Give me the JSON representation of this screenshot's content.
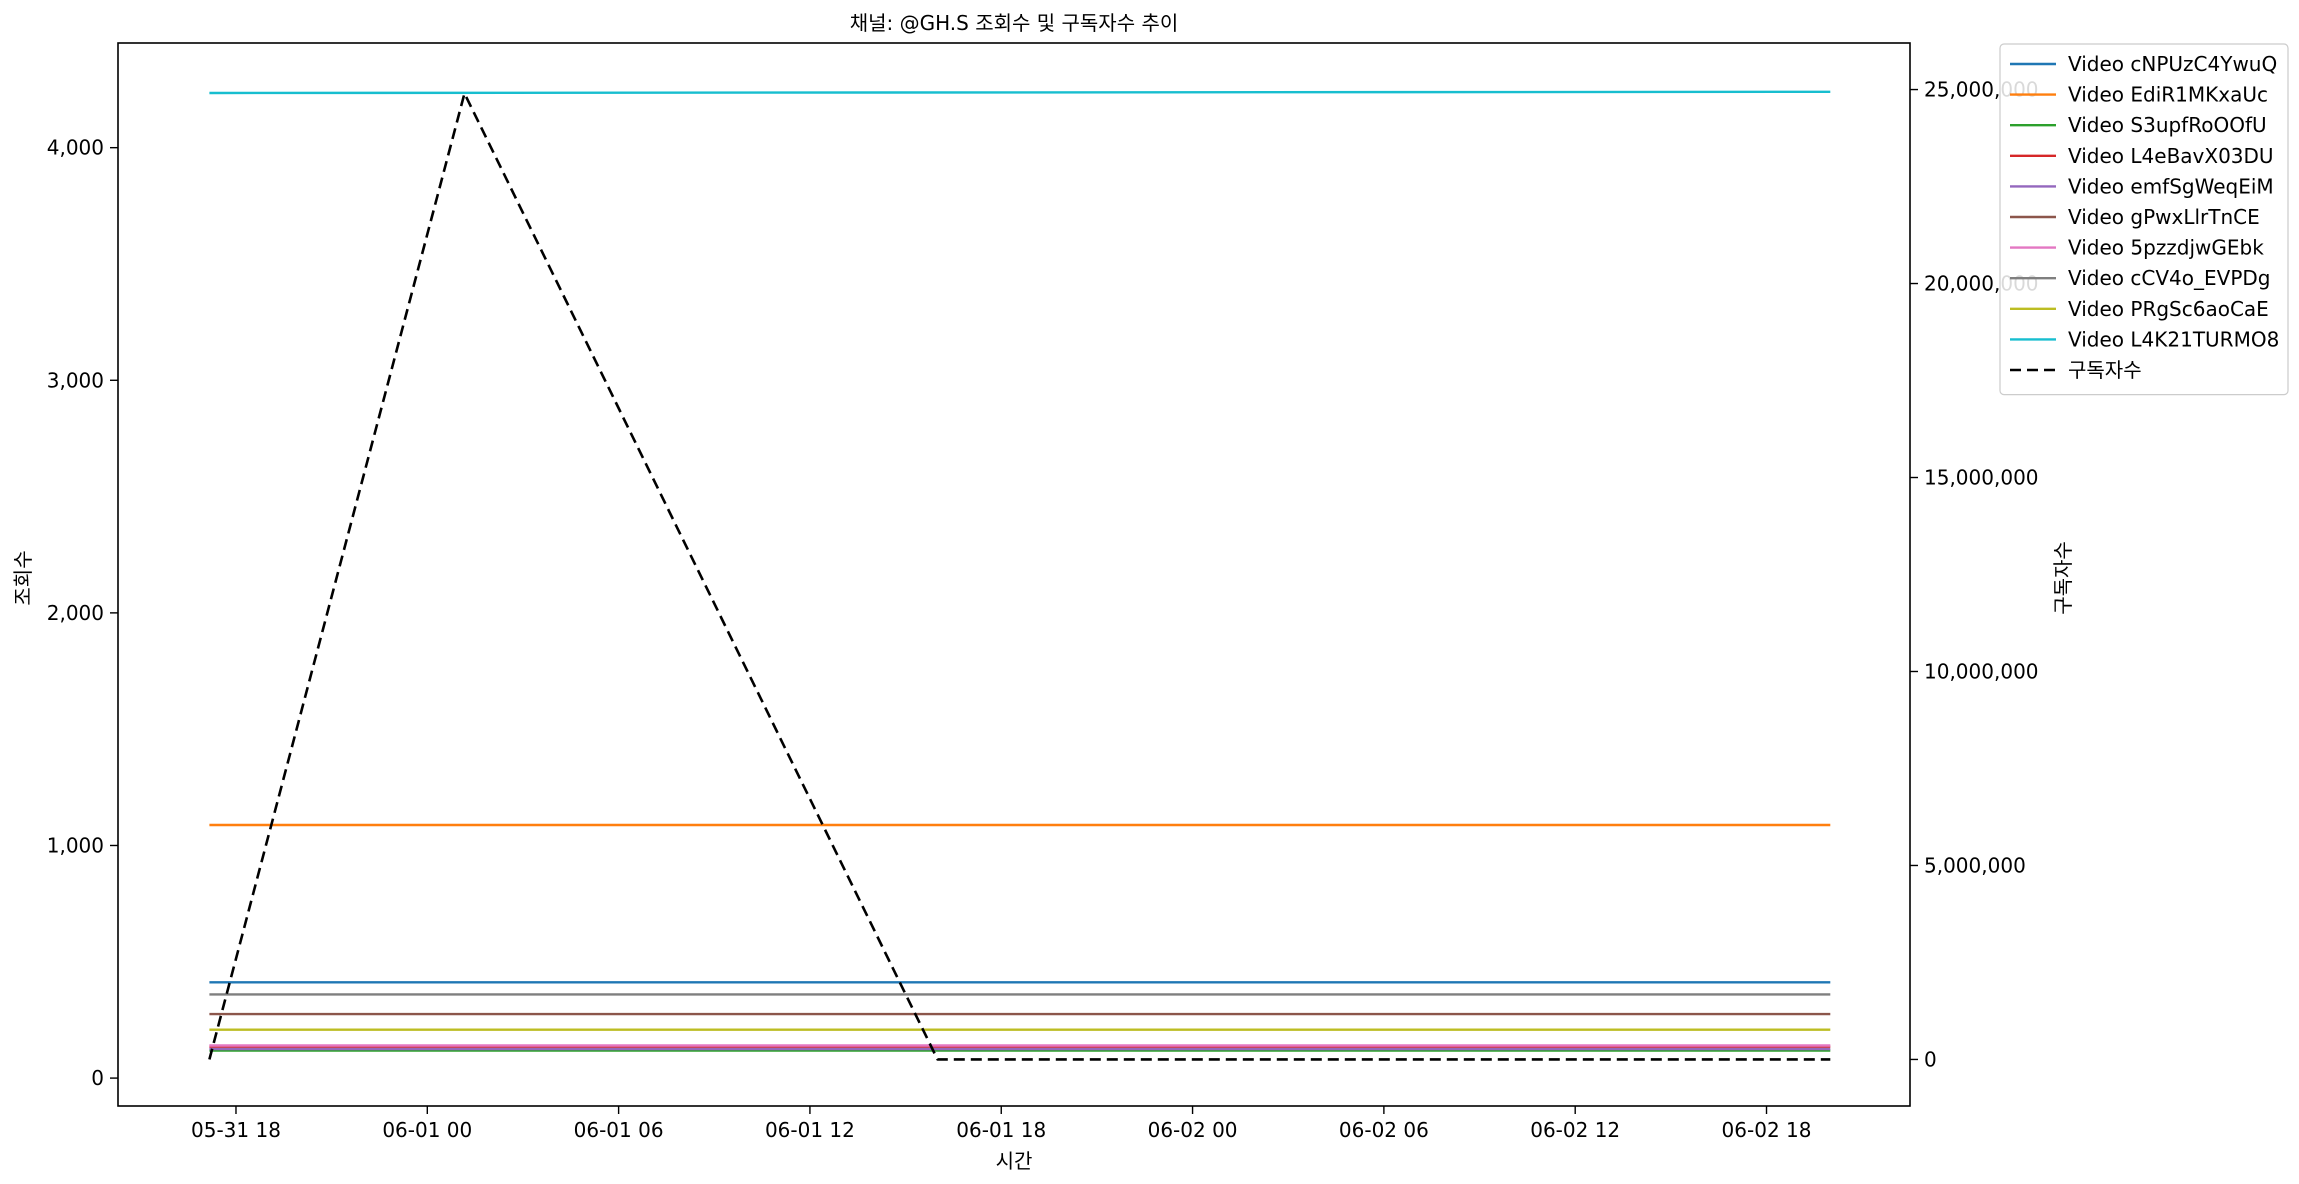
{
  "chart_data": {
    "type": "line",
    "title": "채널: @GH.S 조회수 및 구독자수 추이",
    "xlabel": "시간",
    "ylabel": "조회수",
    "y2label": "구독자수",
    "xlim": [
      "2025-05-31T14:18",
      "2025-06-02T22:30"
    ],
    "ylim": [
      -120,
      4450
    ],
    "y2lim": [
      -1200000,
      26200000
    ],
    "x_ticks": [
      {
        "t": "2025-05-31T18:00",
        "label": "05-31 18"
      },
      {
        "t": "2025-06-01T00:00",
        "label": "06-01 00"
      },
      {
        "t": "2025-06-01T06:00",
        "label": "06-01 06"
      },
      {
        "t": "2025-06-01T12:00",
        "label": "06-01 12"
      },
      {
        "t": "2025-06-01T18:00",
        "label": "06-01 18"
      },
      {
        "t": "2025-06-02T00:00",
        "label": "06-02 00"
      },
      {
        "t": "2025-06-02T06:00",
        "label": "06-02 06"
      },
      {
        "t": "2025-06-02T12:00",
        "label": "06-02 12"
      },
      {
        "t": "2025-06-02T18:00",
        "label": "06-02 18"
      }
    ],
    "y_ticks": [
      {
        "v": 0,
        "label": "0"
      },
      {
        "v": 1000,
        "label": "1,000"
      },
      {
        "v": 2000,
        "label": "2,000"
      },
      {
        "v": 3000,
        "label": "3,000"
      },
      {
        "v": 4000,
        "label": "4,000"
      }
    ],
    "y2_ticks": [
      {
        "v": 0,
        "label": "0"
      },
      {
        "v": 5000000,
        "label": "5,000,000"
      },
      {
        "v": 10000000,
        "label": "10,000,000"
      },
      {
        "v": 15000000,
        "label": "15,000,000"
      },
      {
        "v": 20000000,
        "label": "20,000,000"
      },
      {
        "v": 25000000,
        "label": "25,000,000"
      }
    ],
    "series": [
      {
        "name": "Video cNPUzC4YwuQ",
        "color": "#1f77b4",
        "axis": "left",
        "points": [
          {
            "t": "2025-05-31T17:10",
            "y": 412
          },
          {
            "t": "2025-06-02T20:00",
            "y": 412
          }
        ]
      },
      {
        "name": "Video EdiR1MKxaUc",
        "color": "#ff7f0e",
        "axis": "left",
        "points": [
          {
            "t": "2025-05-31T17:10",
            "y": 1088
          },
          {
            "t": "2025-06-02T20:00",
            "y": 1088
          }
        ]
      },
      {
        "name": "Video S3upfRoOOfU",
        "color": "#2ca02c",
        "axis": "left",
        "points": [
          {
            "t": "2025-05-31T17:10",
            "y": 118
          },
          {
            "t": "2025-06-02T20:00",
            "y": 118
          }
        ]
      },
      {
        "name": "Video L4eBavX03DU",
        "color": "#d62728",
        "axis": "left",
        "points": [
          {
            "t": "2025-05-31T17:10",
            "y": 135
          },
          {
            "t": "2025-06-02T20:00",
            "y": 135
          }
        ]
      },
      {
        "name": "Video emfSgWeqEiM",
        "color": "#9467bd",
        "axis": "left",
        "points": [
          {
            "t": "2025-05-31T17:10",
            "y": 125
          },
          {
            "t": "2025-06-02T20:00",
            "y": 125
          }
        ]
      },
      {
        "name": "Video gPwxLlrTnCE",
        "color": "#8c564b",
        "axis": "left",
        "points": [
          {
            "t": "2025-05-31T17:10",
            "y": 275
          },
          {
            "t": "2025-06-02T20:00",
            "y": 275
          }
        ]
      },
      {
        "name": "Video 5pzzdjwGEbk",
        "color": "#e377c2",
        "axis": "left",
        "points": [
          {
            "t": "2025-05-31T17:10",
            "y": 140
          },
          {
            "t": "2025-06-02T20:00",
            "y": 140
          }
        ]
      },
      {
        "name": "Video cCV4o_EVPDg",
        "color": "#7f7f7f",
        "axis": "left",
        "points": [
          {
            "t": "2025-05-31T17:10",
            "y": 360
          },
          {
            "t": "2025-06-02T20:00",
            "y": 360
          }
        ]
      },
      {
        "name": "Video PRgSc6aoCaE",
        "color": "#bcbd22",
        "axis": "left",
        "points": [
          {
            "t": "2025-05-31T17:10",
            "y": 208
          },
          {
            "t": "2025-06-02T20:00",
            "y": 208
          }
        ]
      },
      {
        "name": "Video L4K21TURMO8",
        "color": "#17becf",
        "axis": "left",
        "points": [
          {
            "t": "2025-05-31T17:10",
            "y": 4235
          },
          {
            "t": "2025-06-02T20:00",
            "y": 4240
          }
        ]
      },
      {
        "name": "구독자수",
        "color": "#000000",
        "axis": "right",
        "dashed": true,
        "points": [
          {
            "t": "2025-05-31T17:10",
            "y": 0
          },
          {
            "t": "2025-06-01T01:10",
            "y": 24900000
          },
          {
            "t": "2025-06-01T16:00",
            "y": 0
          },
          {
            "t": "2025-06-02T20:00",
            "y": 0
          }
        ]
      }
    ],
    "legend": "upper-right-outside",
    "grid": false
  }
}
